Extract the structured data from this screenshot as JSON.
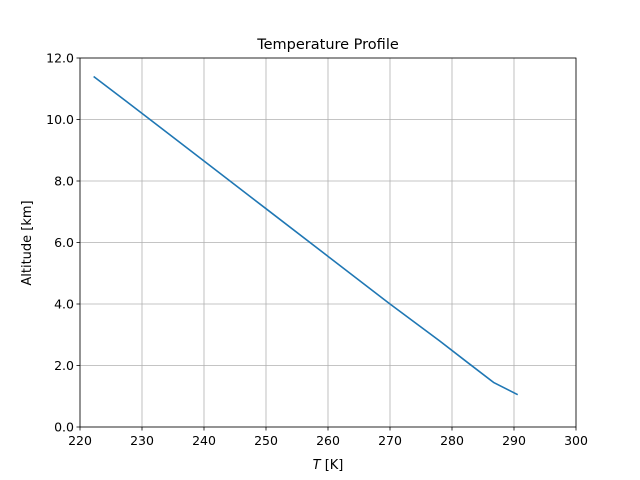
{
  "chart_data": {
    "type": "line",
    "title": "Temperature Profile",
    "xlabel_var": "T",
    "xlabel_unit": " [K]",
    "ylabel": "Altitude [km]",
    "xlim": [
      220,
      300
    ],
    "ylim": [
      0.0,
      12.0
    ],
    "xticks": [
      220,
      230,
      240,
      250,
      260,
      270,
      280,
      290,
      300
    ],
    "yticks": [
      0.0,
      2.0,
      4.0,
      6.0,
      8.0,
      10.0,
      12.0
    ],
    "ytick_labels": [
      "0.0",
      "2.0",
      "4.0",
      "6.0",
      "8.0",
      "10.0",
      "12.0"
    ],
    "grid": true,
    "series": [
      {
        "color": "#1f77b4",
        "x": [
          290.6,
          286.7,
          282.5,
          278.0,
          270.0,
          260.0,
          250.0,
          240.0,
          230.0,
          222.2
        ],
        "y": [
          1.05,
          1.45,
          2.1,
          2.8,
          4.0,
          5.55,
          7.1,
          8.65,
          10.2,
          11.4
        ]
      }
    ]
  }
}
